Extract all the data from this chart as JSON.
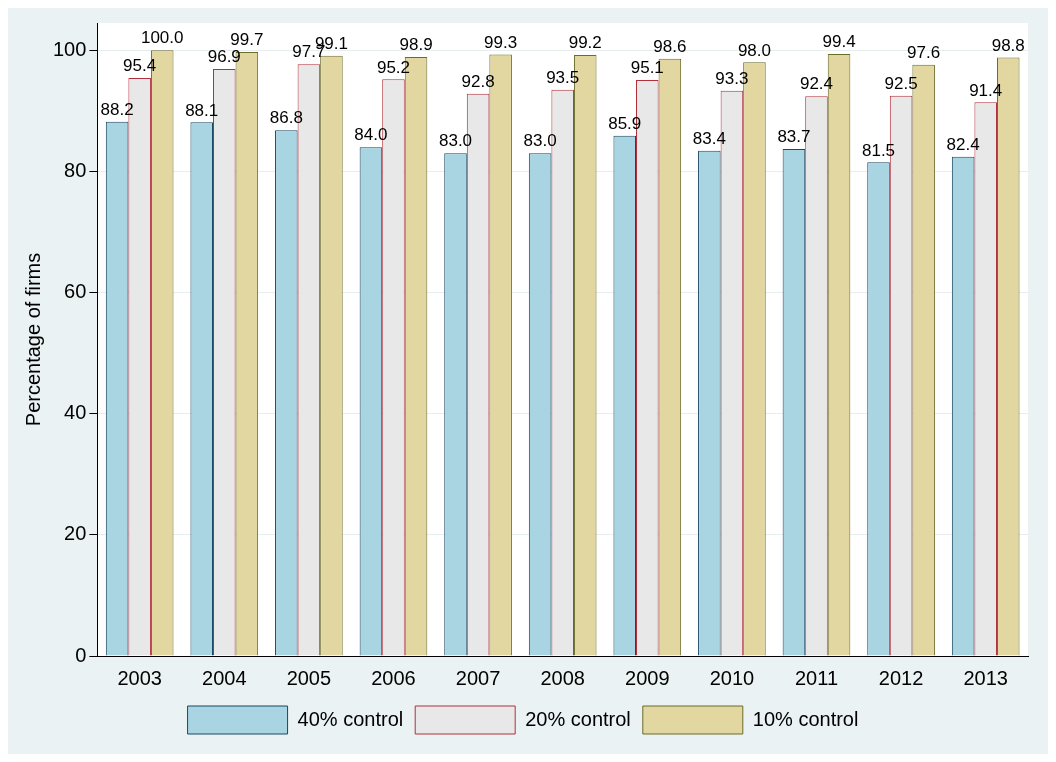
{
  "chart_data": {
    "type": "bar",
    "ylabel": "Percentage of firms",
    "categories": [
      "2003",
      "2004",
      "2005",
      "2006",
      "2007",
      "2008",
      "2009",
      "2010",
      "2011",
      "2012",
      "2013"
    ],
    "series": [
      {
        "name": "40% control",
        "color": "#a9d5e3",
        "values": [
          88.2,
          88.1,
          86.8,
          84.0,
          83.0,
          83.0,
          85.9,
          83.4,
          83.7,
          81.5,
          82.4
        ],
        "value_labels": [
          "88.2",
          "88.1",
          "86.8",
          "84.0",
          "83.0",
          "83.0",
          "85.9",
          "83.4",
          "83.7",
          "81.5",
          "82.4"
        ]
      },
      {
        "name": "20% control",
        "color": "#e8e8e8",
        "values": [
          95.4,
          96.9,
          97.7,
          95.2,
          92.8,
          93.5,
          95.1,
          93.3,
          92.4,
          92.5,
          91.4
        ],
        "value_labels": [
          "95.4",
          "96.9",
          "97.7",
          "95.2",
          "92.8",
          "93.5",
          "95.1",
          "93.3",
          "92.4",
          "92.5",
          "91.4"
        ]
      },
      {
        "name": "10% control",
        "color": "#e2d7a0",
        "values": [
          100.0,
          99.7,
          99.1,
          98.9,
          99.3,
          99.2,
          98.6,
          98.0,
          99.4,
          97.6,
          98.8
        ],
        "value_labels": [
          "100.0",
          "99.7",
          "99.1",
          "98.9",
          "99.3",
          "99.2",
          "98.6",
          "98.0",
          "99.4",
          "97.6",
          "98.8"
        ]
      }
    ],
    "ylim": [
      0,
      104.5
    ],
    "yticks": [
      0,
      20,
      40,
      60,
      80,
      100
    ],
    "grid": "y",
    "legend": "bottom"
  }
}
